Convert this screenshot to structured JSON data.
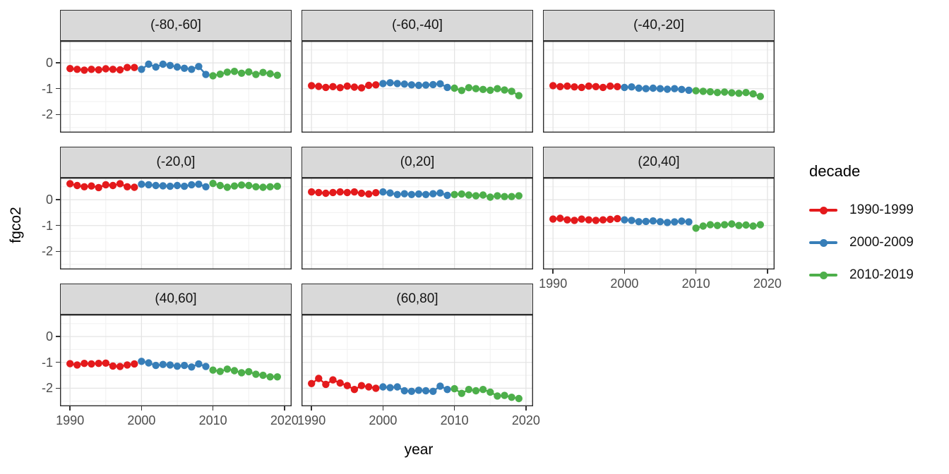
{
  "figure": {
    "x_axis_title": "year",
    "y_axis_title": "fgco2"
  },
  "legend": {
    "title": "decade",
    "entries": [
      {
        "label": "1990-1999",
        "color": "#e41a1c"
      },
      {
        "label": "2000-2009",
        "color": "#377eb8"
      },
      {
        "label": "2010-2019",
        "color": "#4daf4a"
      }
    ]
  },
  "chart_data": {
    "type": "scatter",
    "title": "",
    "xlabel": "year",
    "ylabel": "fgco2",
    "legend_title": "decade",
    "legend_position": "right",
    "grid": true,
    "facet_variable": "latitude band",
    "xlim": [
      1988.6,
      2021.0
    ],
    "ylim": [
      -2.7,
      0.85
    ],
    "x_ticks": [
      1990,
      2000,
      2010,
      2020
    ],
    "x_minor_ticks": [
      1995,
      2005,
      2015
    ],
    "y_ticks": [
      0,
      -1,
      -2
    ],
    "y_minor_ticks": [
      0.5,
      -0.5,
      -1.5,
      -2.5
    ],
    "series_meta": [
      {
        "name": "1990-1999",
        "start_year": 1990,
        "color": "#e41a1c"
      },
      {
        "name": "2000-2009",
        "start_year": 2000,
        "color": "#377eb8"
      },
      {
        "name": "2010-2019",
        "start_year": 2010,
        "color": "#4daf4a"
      }
    ],
    "facets": [
      {
        "label": "(-80,-60]",
        "show_x_axis": false,
        "series": [
          {
            "name": "1990-1999",
            "values": [
              -0.22,
              -0.25,
              -0.28,
              -0.25,
              -0.27,
              -0.23,
              -0.25,
              -0.27,
              -0.18,
              -0.18
            ]
          },
          {
            "name": "2000-2009",
            "values": [
              -0.25,
              -0.05,
              -0.16,
              -0.05,
              -0.1,
              -0.16,
              -0.21,
              -0.25,
              -0.14,
              -0.45
            ]
          },
          {
            "name": "2010-2019",
            "values": [
              -0.5,
              -0.44,
              -0.36,
              -0.33,
              -0.4,
              -0.35,
              -0.45,
              -0.37,
              -0.42,
              -0.48
            ]
          }
        ]
      },
      {
        "label": "(-60,-40]",
        "show_x_axis": false,
        "series": [
          {
            "name": "1990-1999",
            "values": [
              -0.88,
              -0.91,
              -0.95,
              -0.92,
              -0.96,
              -0.9,
              -0.94,
              -0.97,
              -0.87,
              -0.85
            ]
          },
          {
            "name": "2000-2009",
            "values": [
              -0.8,
              -0.77,
              -0.8,
              -0.82,
              -0.85,
              -0.87,
              -0.86,
              -0.84,
              -0.81,
              -0.95
            ]
          },
          {
            "name": "2010-2019",
            "values": [
              -0.98,
              -1.07,
              -0.96,
              -1.0,
              -1.03,
              -1.06,
              -1.0,
              -1.05,
              -1.1,
              -1.27
            ]
          }
        ]
      },
      {
        "label": "(-40,-20]",
        "show_x_axis": false,
        "series": [
          {
            "name": "1990-1999",
            "values": [
              -0.88,
              -0.92,
              -0.9,
              -0.93,
              -0.95,
              -0.9,
              -0.92,
              -0.95,
              -0.9,
              -0.92
            ]
          },
          {
            "name": "2000-2009",
            "values": [
              -0.95,
              -0.93,
              -0.98,
              -1.0,
              -0.98,
              -1.0,
              -1.02,
              -1.0,
              -1.03,
              -1.06
            ]
          },
          {
            "name": "2010-2019",
            "values": [
              -1.08,
              -1.1,
              -1.12,
              -1.15,
              -1.13,
              -1.16,
              -1.18,
              -1.15,
              -1.2,
              -1.3
            ]
          }
        ]
      },
      {
        "label": "(-20,0]",
        "show_x_axis": false,
        "series": [
          {
            "name": "1990-1999",
            "values": [
              0.62,
              0.55,
              0.5,
              0.53,
              0.47,
              0.58,
              0.55,
              0.62,
              0.5,
              0.48
            ]
          },
          {
            "name": "2000-2009",
            "values": [
              0.6,
              0.58,
              0.55,
              0.54,
              0.52,
              0.55,
              0.52,
              0.58,
              0.6,
              0.5
            ]
          },
          {
            "name": "2010-2019",
            "values": [
              0.63,
              0.55,
              0.48,
              0.53,
              0.57,
              0.55,
              0.5,
              0.48,
              0.5,
              0.52
            ]
          }
        ]
      },
      {
        "label": "(0,20]",
        "show_x_axis": false,
        "series": [
          {
            "name": "1990-1999",
            "values": [
              0.3,
              0.28,
              0.25,
              0.28,
              0.3,
              0.28,
              0.3,
              0.25,
              0.22,
              0.27
            ]
          },
          {
            "name": "2000-2009",
            "values": [
              0.3,
              0.26,
              0.2,
              0.23,
              0.2,
              0.22,
              0.2,
              0.23,
              0.26,
              0.17
            ]
          },
          {
            "name": "2010-2019",
            "values": [
              0.2,
              0.22,
              0.18,
              0.15,
              0.18,
              0.1,
              0.15,
              0.12,
              0.12,
              0.15
            ]
          }
        ]
      },
      {
        "label": "(20,40]",
        "show_x_axis": true,
        "series": [
          {
            "name": "1990-1999",
            "values": [
              -0.75,
              -0.72,
              -0.78,
              -0.8,
              -0.75,
              -0.78,
              -0.8,
              -0.78,
              -0.76,
              -0.73
            ]
          },
          {
            "name": "2000-2009",
            "values": [
              -0.78,
              -0.8,
              -0.85,
              -0.84,
              -0.82,
              -0.85,
              -0.88,
              -0.86,
              -0.83,
              -0.86
            ]
          },
          {
            "name": "2010-2019",
            "values": [
              -1.1,
              -1.02,
              -0.97,
              -1.0,
              -0.97,
              -0.94,
              -1.0,
              -0.98,
              -1.02,
              -0.97
            ]
          }
        ]
      },
      {
        "label": "(40,60]",
        "show_x_axis": true,
        "series": [
          {
            "name": "1990-1999",
            "values": [
              -1.05,
              -1.1,
              -1.04,
              -1.06,
              -1.04,
              -1.03,
              -1.14,
              -1.16,
              -1.1,
              -1.06
            ]
          },
          {
            "name": "2000-2009",
            "values": [
              -0.96,
              -1.02,
              -1.12,
              -1.08,
              -1.1,
              -1.15,
              -1.12,
              -1.18,
              -1.06,
              -1.16
            ]
          },
          {
            "name": "2010-2019",
            "values": [
              -1.3,
              -1.35,
              -1.26,
              -1.32,
              -1.4,
              -1.36,
              -1.46,
              -1.5,
              -1.56,
              -1.56
            ]
          }
        ]
      },
      {
        "label": "(60,80]",
        "show_x_axis": true,
        "series": [
          {
            "name": "1990-1999",
            "values": [
              -1.82,
              -1.62,
              -1.85,
              -1.68,
              -1.8,
              -1.9,
              -2.05,
              -1.9,
              -1.95,
              -2.0
            ]
          },
          {
            "name": "2000-2009",
            "values": [
              -1.95,
              -1.98,
              -1.95,
              -2.1,
              -2.12,
              -2.08,
              -2.1,
              -2.12,
              -1.92,
              -2.05
            ]
          },
          {
            "name": "2010-2019",
            "values": [
              -2.02,
              -2.2,
              -2.05,
              -2.1,
              -2.05,
              -2.15,
              -2.3,
              -2.28,
              -2.35,
              -2.4
            ]
          }
        ]
      }
    ]
  }
}
